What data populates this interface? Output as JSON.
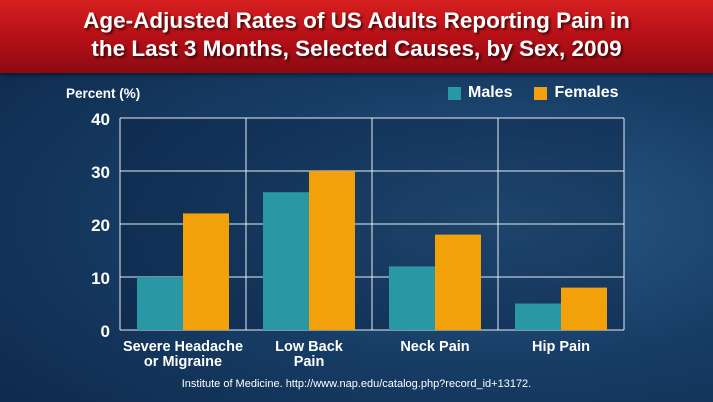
{
  "title": "Age-Adjusted Rates of US Adults Reporting Pain in\nthe Last 3 Months, Selected Causes, by Sex, 2009",
  "source": "Institute of Medicine. http://www.nap.edu/catalog.php?record_id+13172.",
  "colors": {
    "males": "#2a97a5",
    "females": "#f2a10a",
    "banner": "#c0161b"
  },
  "chart_data": {
    "type": "bar",
    "title": "Age-Adjusted Rates of US Adults Reporting Pain in the Last 3 Months, Selected Causes, by Sex, 2009",
    "ylabel": "Percent (%)",
    "xlabel": "",
    "ylim": [
      0,
      40
    ],
    "yticks": [
      0,
      10,
      20,
      30,
      40
    ],
    "grid": true,
    "legend_position": "top-right",
    "categories": [
      "Severe Headache\nor Migraine",
      "Low Back\nPain",
      "Neck Pain",
      "Hip Pain"
    ],
    "series": [
      {
        "name": "Males",
        "values": [
          10,
          26,
          12,
          5
        ]
      },
      {
        "name": "Females",
        "values": [
          22,
          30,
          18,
          8
        ]
      }
    ]
  }
}
